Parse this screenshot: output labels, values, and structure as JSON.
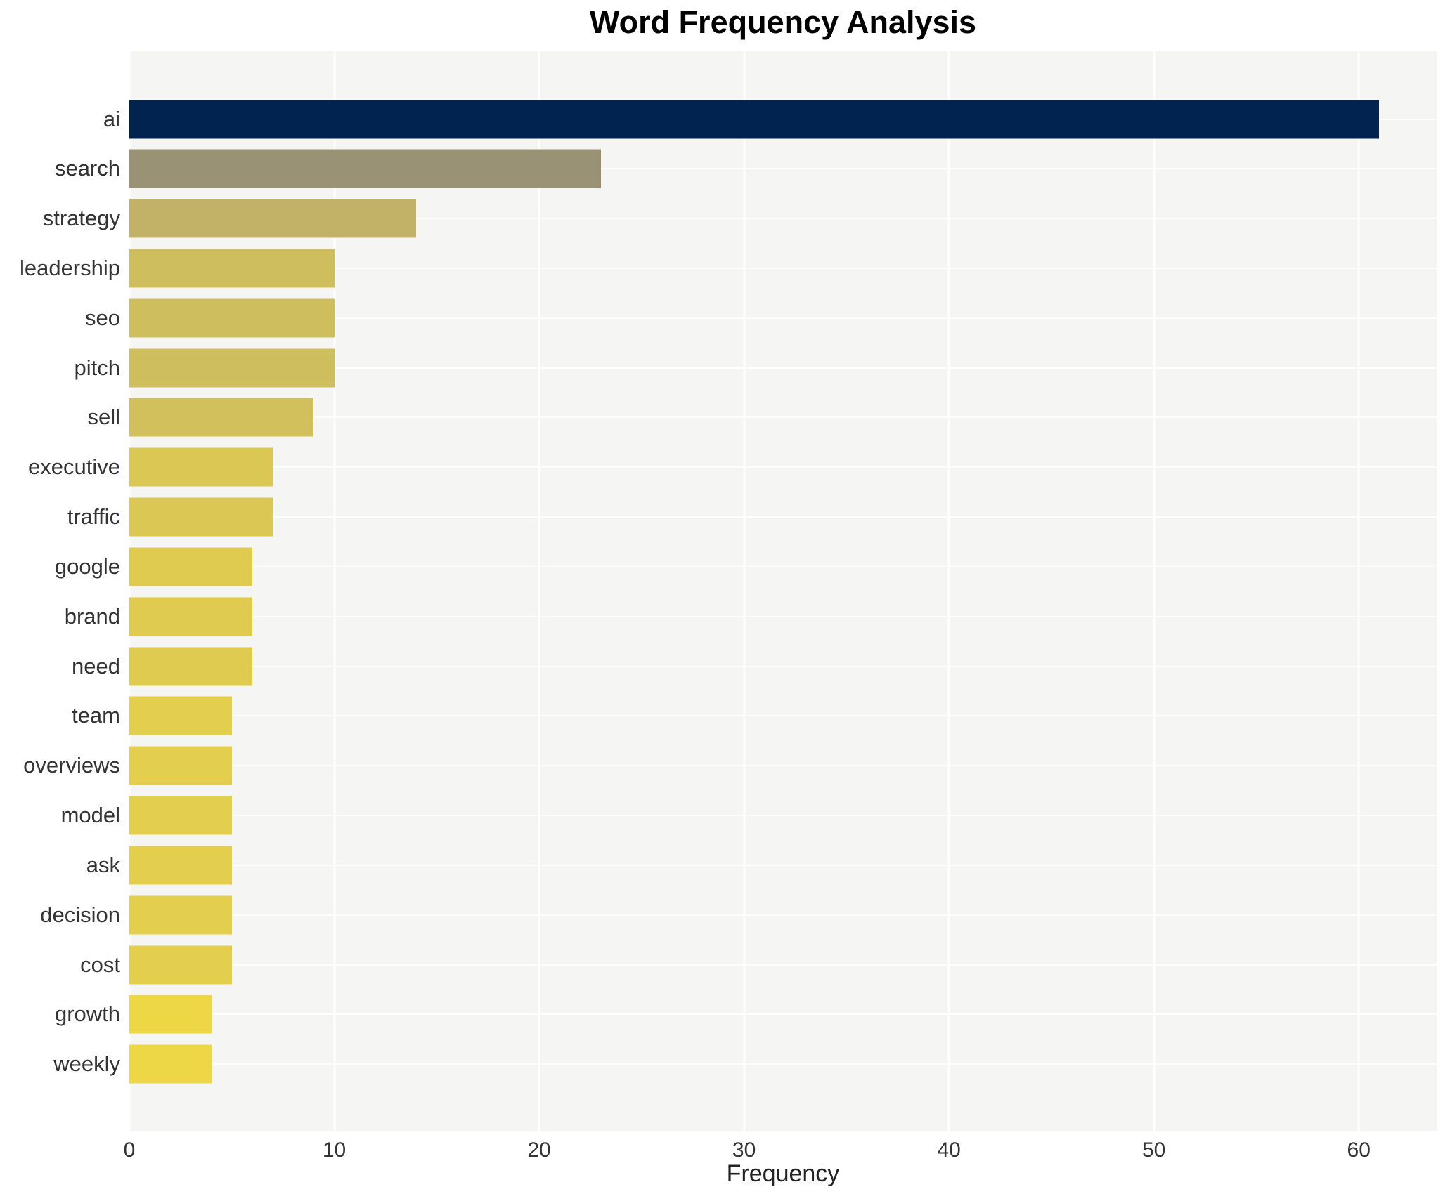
{
  "chart_data": {
    "type": "bar",
    "orientation": "horizontal",
    "title": "Word Frequency Analysis",
    "xlabel": "Frequency",
    "ylabel": "",
    "categories": [
      "ai",
      "search",
      "strategy",
      "leadership",
      "seo",
      "pitch",
      "sell",
      "executive",
      "traffic",
      "google",
      "brand",
      "need",
      "team",
      "overviews",
      "model",
      "ask",
      "decision",
      "cost",
      "growth",
      "weekly"
    ],
    "values": [
      61,
      23,
      14,
      10,
      10,
      10,
      9,
      7,
      7,
      6,
      6,
      6,
      5,
      5,
      5,
      5,
      5,
      5,
      4,
      4
    ],
    "bar_colors": [
      "#00234f",
      "#9a9274",
      "#c1b267",
      "#cfbe5e",
      "#cfbe5e",
      "#cfbe5e",
      "#d2c05c",
      "#dbc854",
      "#dbc854",
      "#dfcb50",
      "#dfcb50",
      "#dfcb50",
      "#e3ce4d",
      "#e3ce4d",
      "#e3ce4d",
      "#e3ce4d",
      "#e3ce4d",
      "#e3ce4d",
      "#edd745",
      "#edd745"
    ],
    "xlim": [
      0,
      63.8
    ],
    "xticks": [
      0,
      10,
      20,
      30,
      40,
      50,
      60
    ],
    "grid": true,
    "legend": null,
    "plot_background": "#f5f5f3",
    "grid_color": "#ffffff",
    "tick_label_color": "#333333",
    "title_color": "#000000"
  }
}
